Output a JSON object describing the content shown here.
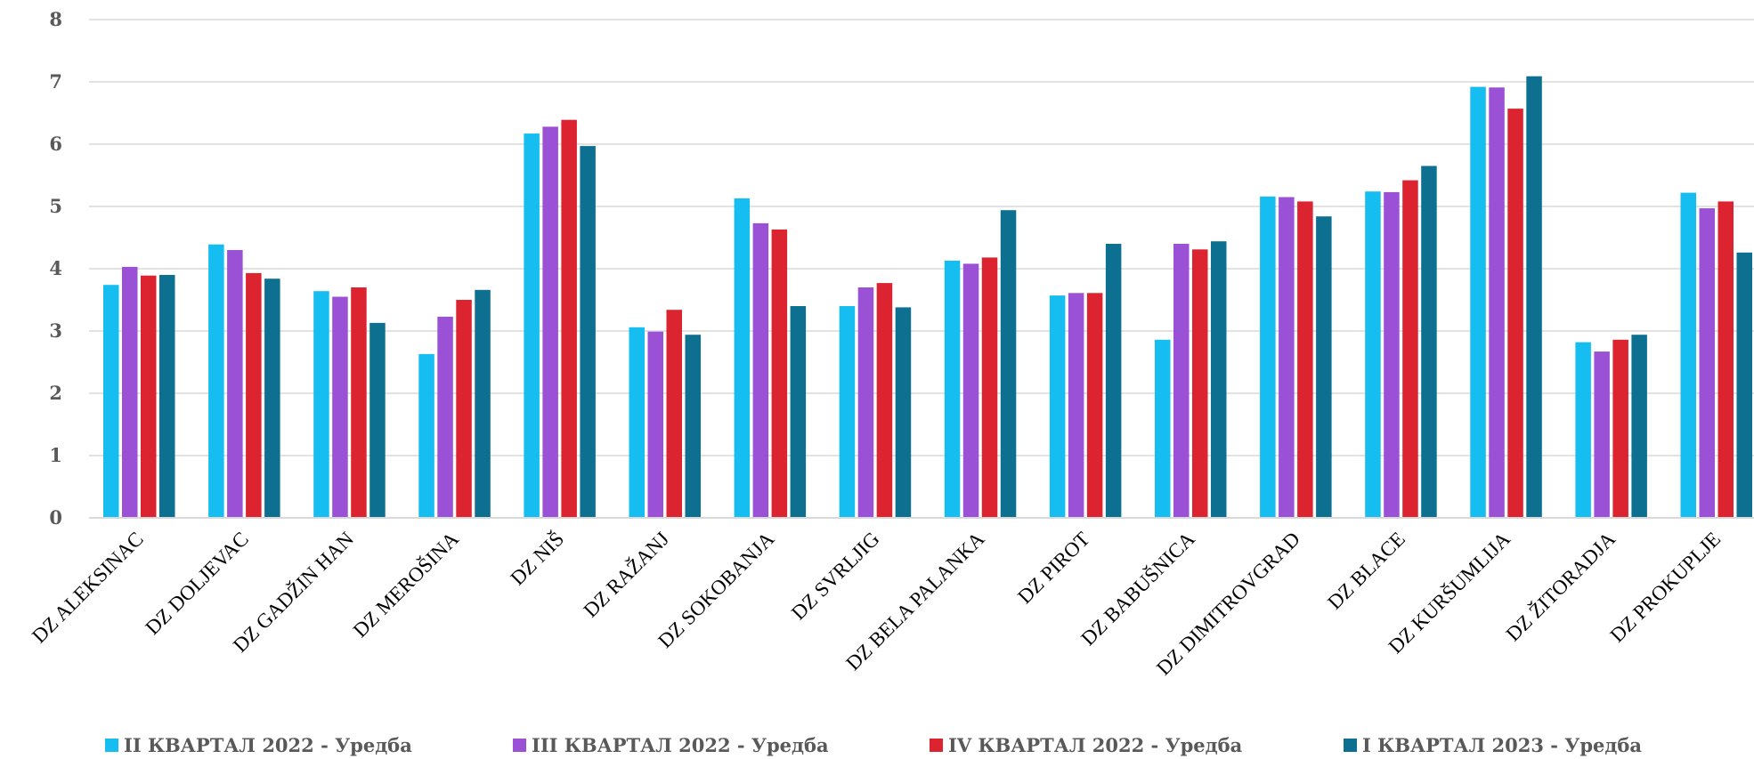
{
  "chart_data": {
    "type": "bar",
    "categories": [
      "DZ  ALEKSINAC",
      "DZ DOLJEVAC",
      "DZ GADŽIN HAN",
      "DZ MEROŠINA",
      "DZ NIŠ",
      "DZ RAŽANJ",
      "DZ SOKOBANJA",
      "DZ SVRLJIG",
      "DZ BELA PALANKA",
      "DZ PIROT",
      "DZ BABUŠNICA",
      "DZ DIMITROVGRAD",
      "DZ BLACE",
      "DZ KURŠUMLIJA",
      "DZ ŽITORADJA",
      "DZ PROKUPLJE"
    ],
    "series": [
      {
        "name": "II КВАРТАЛ 2022 - Уредба",
        "color": "#16bdf0",
        "values": [
          3.74,
          4.39,
          3.64,
          2.63,
          6.17,
          3.06,
          5.13,
          3.4,
          4.13,
          3.57,
          2.86,
          5.16,
          5.24,
          6.92,
          2.82,
          5.22
        ]
      },
      {
        "name": "III КВАРТАЛ 2022 - Уредба",
        "color": "#9b51d6",
        "values": [
          4.03,
          4.3,
          3.55,
          3.23,
          6.28,
          2.99,
          4.73,
          3.7,
          4.08,
          3.61,
          4.4,
          5.15,
          5.23,
          6.91,
          2.67,
          4.97
        ]
      },
      {
        "name": "IV КВАРТАЛ 2022 - Уредба",
        "color": "#dc2330",
        "values": [
          3.89,
          3.93,
          3.7,
          3.5,
          6.39,
          3.34,
          4.63,
          3.77,
          4.18,
          3.61,
          4.31,
          5.08,
          5.42,
          6.57,
          2.86,
          5.08
        ]
      },
      {
        "name": "I КВАРТАЛ 2023 - Уредба",
        "color": "#0d7091",
        "values": [
          3.9,
          3.84,
          3.13,
          3.66,
          5.97,
          2.94,
          3.4,
          3.38,
          4.94,
          4.4,
          4.44,
          4.84,
          5.65,
          7.09,
          2.94,
          4.26
        ]
      }
    ],
    "ylim": [
      0,
      8
    ],
    "yticks": [
      0,
      1,
      2,
      3,
      4,
      5,
      6,
      7,
      8
    ],
    "grid": true,
    "legend_position": "bottom"
  }
}
